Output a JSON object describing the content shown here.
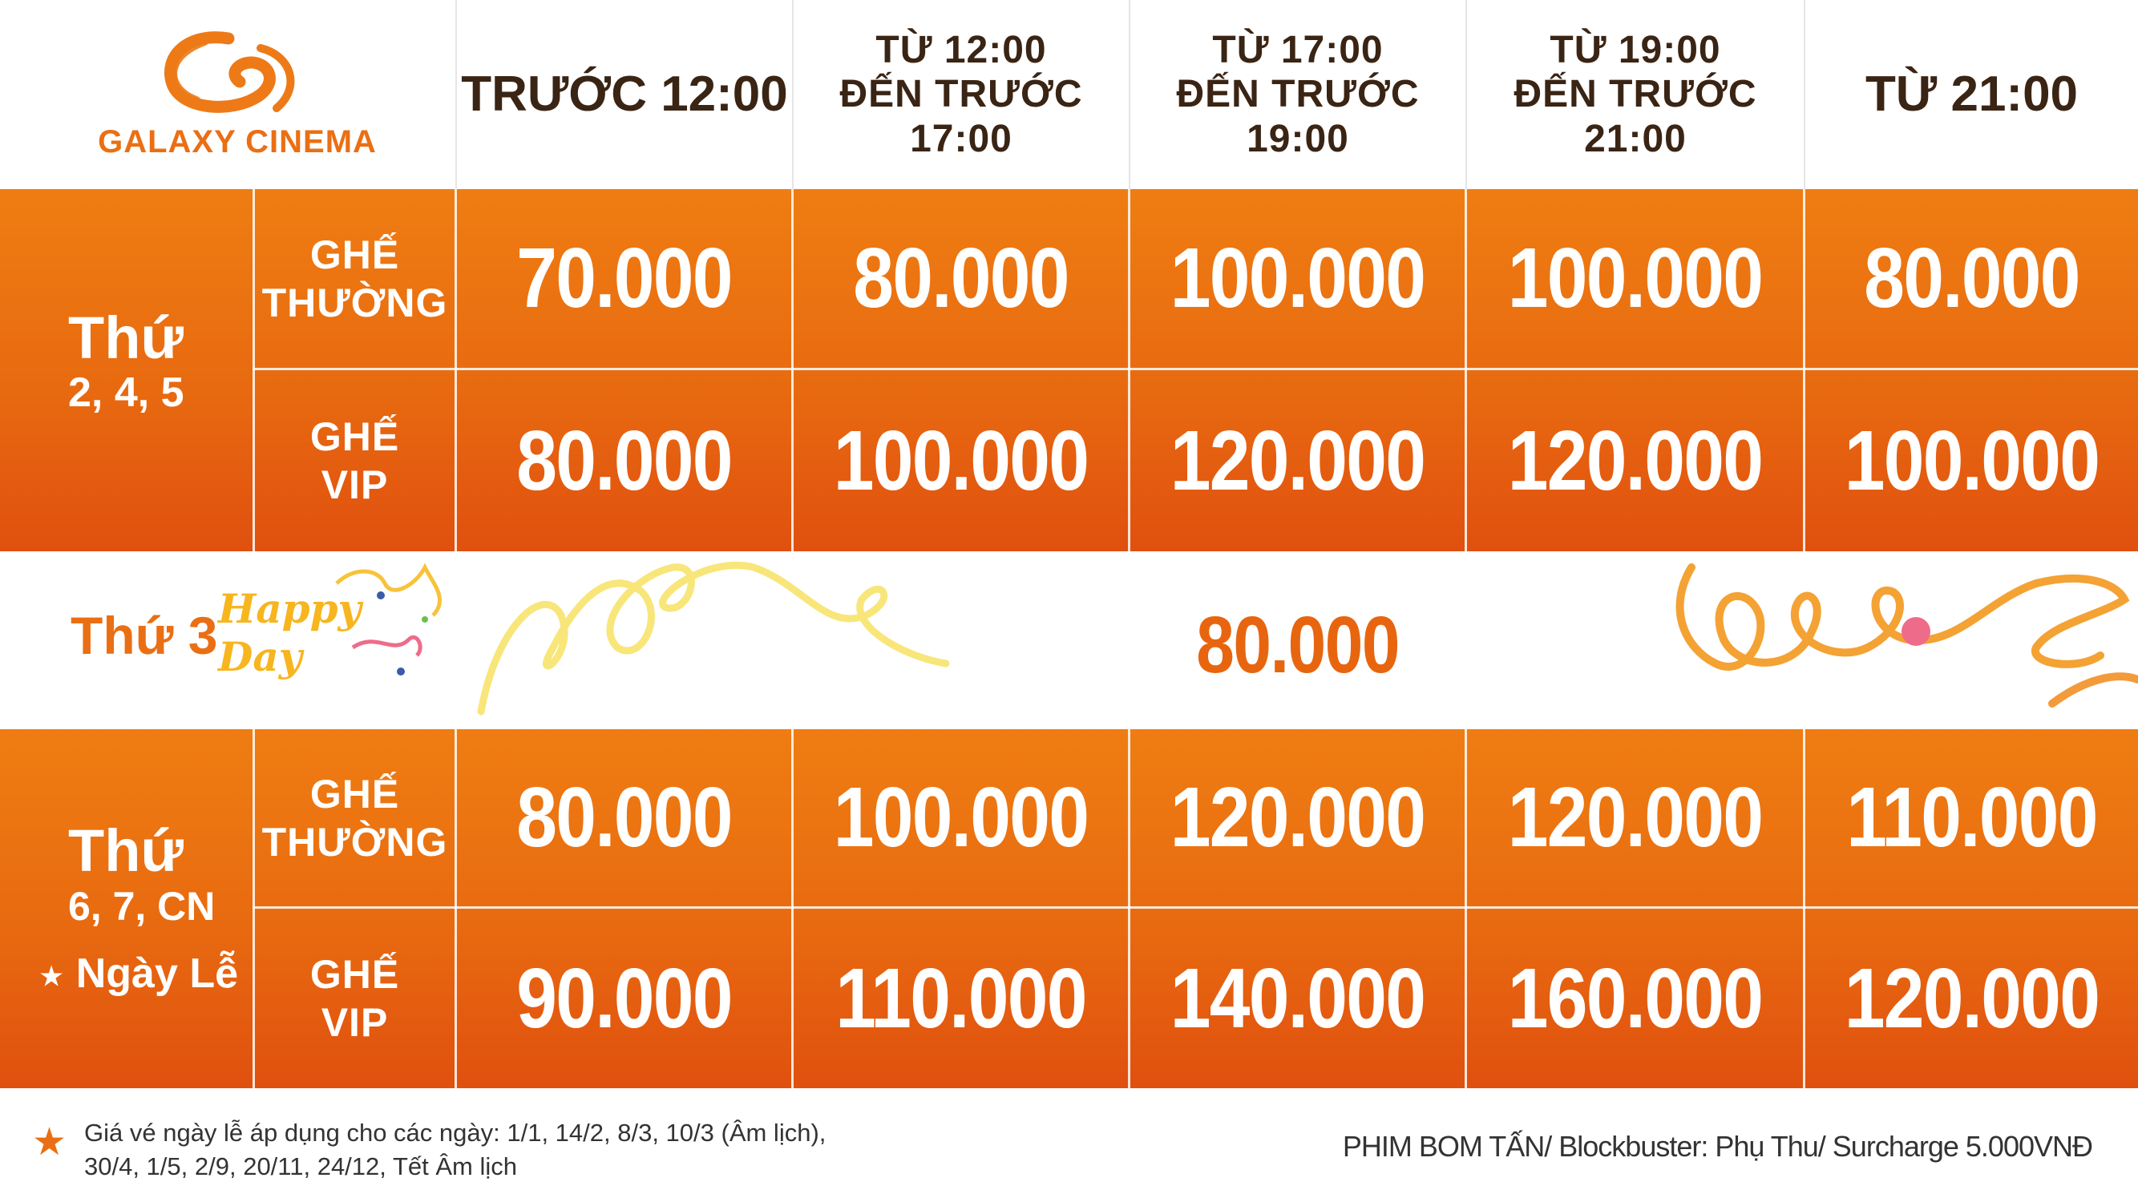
{
  "brand": {
    "name": "GALAXY CINEMA"
  },
  "header": {
    "cols": [
      {
        "lines": [
          "TRƯỚC 12:00"
        ]
      },
      {
        "lines": [
          "TỪ 12:00",
          "ĐẾN TRƯỚC 17:00"
        ]
      },
      {
        "lines": [
          "TỪ 17:00",
          "ĐẾN TRƯỚC 19:00"
        ]
      },
      {
        "lines": [
          "TỪ 19:00",
          "ĐẾN TRƯỚC 21:00"
        ]
      },
      {
        "lines": [
          "TỪ 21:00"
        ]
      }
    ]
  },
  "weekday": {
    "day_main": "Thứ",
    "day_sub": "2, 4, 5",
    "rows": [
      {
        "seat_l1": "GHẾ",
        "seat_l2": "THƯỜNG",
        "prices": [
          "70.000",
          "80.000",
          "100.000",
          "100.000",
          "80.000"
        ]
      },
      {
        "seat_l1": "GHẾ",
        "seat_l2": "VIP",
        "prices": [
          "80.000",
          "100.000",
          "120.000",
          "120.000",
          "100.000"
        ]
      }
    ]
  },
  "tuesday": {
    "label": "Thứ 3",
    "happy": "Happy",
    "day": "Day",
    "price": "80.000"
  },
  "weekend": {
    "day_main": "Thứ",
    "day_sub": "6, 7, CN",
    "holiday": "Ngày Lễ",
    "rows": [
      {
        "seat_l1": "GHẾ",
        "seat_l2": "THƯỜNG",
        "prices": [
          "80.000",
          "100.000",
          "120.000",
          "120.000",
          "110.000"
        ]
      },
      {
        "seat_l1": "GHẾ",
        "seat_l2": "VIP",
        "prices": [
          "90.000",
          "110.000",
          "140.000",
          "160.000",
          "120.000"
        ]
      }
    ]
  },
  "footer": {
    "note_l1": "Giá vé ngày lễ áp dụng cho các ngày: 1/1, 14/2, 8/3, 10/3 (Âm lịch),",
    "note_l2": "30/4, 1/5, 2/9, 20/11, 24/12, Tết Âm lịch",
    "surcharge": "PHIM BOM TẤN/ Blockbuster: Phụ Thu/ Surcharge 5.000VNĐ"
  },
  "colors": {
    "orange": "#e8650f",
    "dark_text": "#3a2414",
    "accent_yellow": "#f7b51e",
    "accent_pink": "#ee6c8a"
  }
}
